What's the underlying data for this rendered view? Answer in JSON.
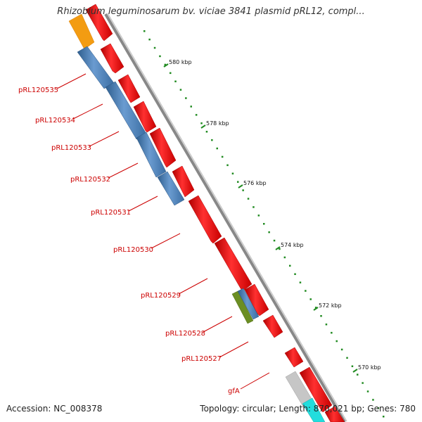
{
  "title": "Rhizobium leguminosarum bv. viciae 3841 plasmid pRL12, compl...",
  "footer": {
    "accession": "Accession: NC_008378",
    "topology": "Topology: circular; Length: 870,021 bp; Genes: 780"
  },
  "ruler": {
    "ticks": [
      "580 kbp",
      "578 kbp",
      "576 kbp",
      "574 kbp",
      "572 kbp",
      "570 kbp"
    ]
  },
  "gene_labels": [
    "pRL120535",
    "pRL120534",
    "pRL120533",
    "pRL120532",
    "pRL120531",
    "pRL120530",
    "pRL120529",
    "pRL120528",
    "pRL120527",
    "gfA"
  ],
  "colors": {
    "cds": "#ee1111",
    "blue_feature": "#4a7fb5",
    "orange_feature": "#f39c12",
    "olive_feature": "#6b8e23",
    "gray_feature": "#c0c0c0",
    "cyan_feature": "#22dddd",
    "label": "#cc0000",
    "ruler_dots": "#228b22",
    "backbone": "#777777"
  }
}
